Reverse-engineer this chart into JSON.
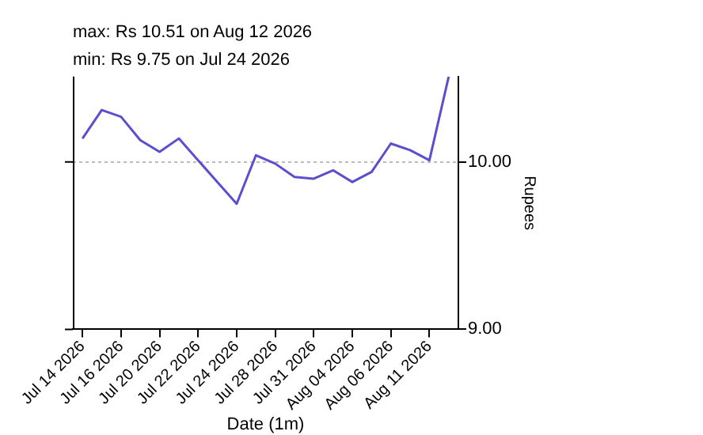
{
  "chart_data": {
    "type": "line",
    "title": "max: Rs 10.51 on Aug 12 2026",
    "subtitle": "min: Rs 9.75 on Jul 24 2026",
    "xlabel": "Date (1m)",
    "ylabel": "Rupees",
    "categories": [
      "Jul 14 2026",
      null,
      "Jul 16 2026",
      null,
      "Jul 20 2026",
      null,
      "Jul 22 2026",
      null,
      "Jul 24 2026",
      null,
      "Jul 28 2026",
      null,
      "Jul 31 2026",
      null,
      "Aug 04 2026",
      null,
      "Aug 06 2026",
      null,
      "Aug 11 2026",
      null
    ],
    "series": [
      {
        "color": "#5a4fcf",
        "values": [
          10.14,
          10.31,
          10.27,
          10.13,
          10.06,
          10.14,
          10.01,
          9.88,
          9.75,
          10.04,
          9.99,
          9.91,
          9.9,
          9.95,
          9.88,
          9.94,
          10.11,
          10.07,
          10.01,
          10.51
        ]
      }
    ],
    "ylim": [
      9,
      10.51
    ],
    "yticks": [
      {
        "value": 9,
        "label": "9.00"
      },
      {
        "value": 10,
        "label": "10.00"
      }
    ],
    "grid": "y",
    "legend": false,
    "marker": "none",
    "line_style": "solid"
  }
}
